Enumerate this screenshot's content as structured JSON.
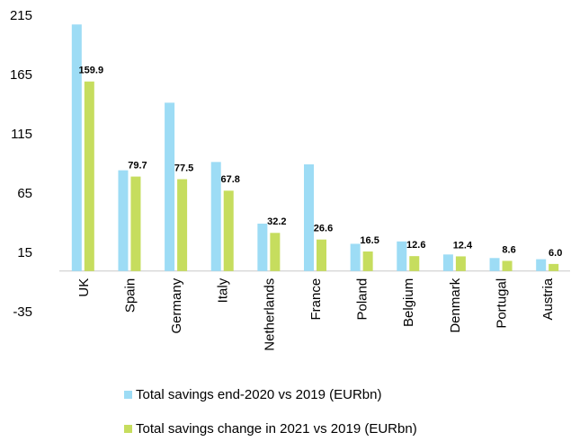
{
  "chart_data": {
    "type": "bar",
    "categories": [
      "UK",
      "Spain",
      "Germany",
      "Italy",
      "Netherlands",
      "France",
      "Poland",
      "Belgium",
      "Denmark",
      "Portugal",
      "Austria"
    ],
    "series": [
      {
        "name": "Total savings end-2020 vs 2019 (EURbn)",
        "color": "#9ddcf5",
        "values": [
          208,
          85,
          142,
          92,
          40,
          90,
          23,
          25,
          14,
          11,
          10
        ]
      },
      {
        "name": "Total savings change in 2021 vs 2019 (EURbn)",
        "color": "#c6dd5e",
        "values": [
          159.9,
          79.7,
          77.5,
          67.8,
          32.2,
          26.6,
          16.5,
          12.6,
          12.4,
          8.6,
          6.0
        ],
        "value_labels": [
          "159.9",
          "79.7",
          "77.5",
          "67.8",
          "32.2",
          "26.6",
          "16.5",
          "12.6",
          "12.4",
          "8.6",
          "6.0"
        ]
      }
    ],
    "ylim": [
      -35,
      215
    ],
    "yticks": [
      -35,
      15,
      65,
      115,
      165,
      215
    ],
    "grid": false,
    "legend": "bottom"
  }
}
